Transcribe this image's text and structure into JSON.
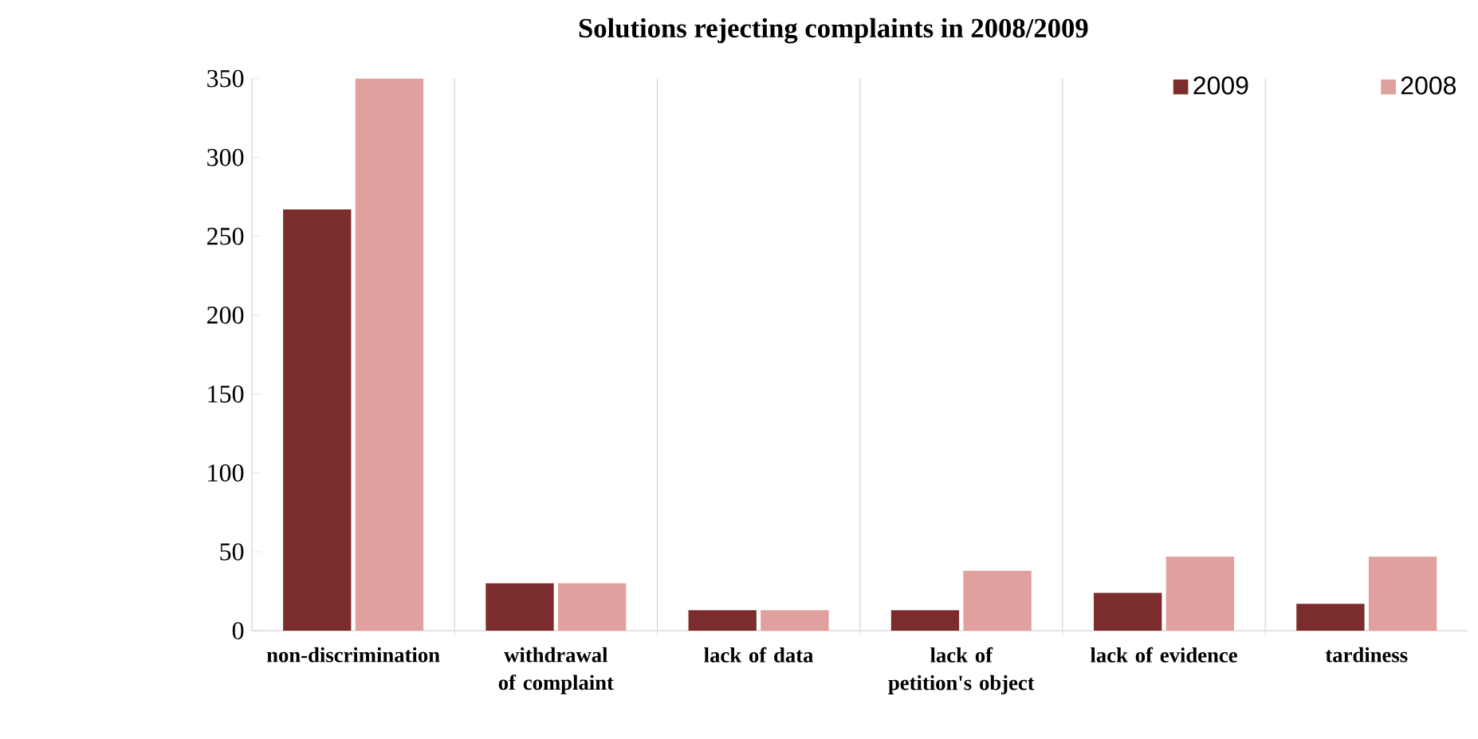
{
  "chart_data": {
    "type": "bar",
    "title": "Solutions rejecting complaints in 2008/2009",
    "categories": [
      "non-discrimination",
      "withdrawal of complaint",
      "lack of data",
      "lack of petition's object",
      "lack of evidence",
      "tardiness"
    ],
    "series": [
      {
        "name": "2009",
        "color": "#7b2d2d",
        "values": [
          267,
          30,
          13,
          13,
          24,
          17
        ]
      },
      {
        "name": "2008",
        "color": "#e0a09e",
        "values": [
          350,
          30,
          13,
          38,
          47,
          47
        ]
      }
    ],
    "ylim": [
      0,
      350
    ],
    "yticks": [
      0,
      50,
      100,
      150,
      200,
      250,
      300,
      350
    ],
    "grid": "x",
    "legend": "top right"
  }
}
